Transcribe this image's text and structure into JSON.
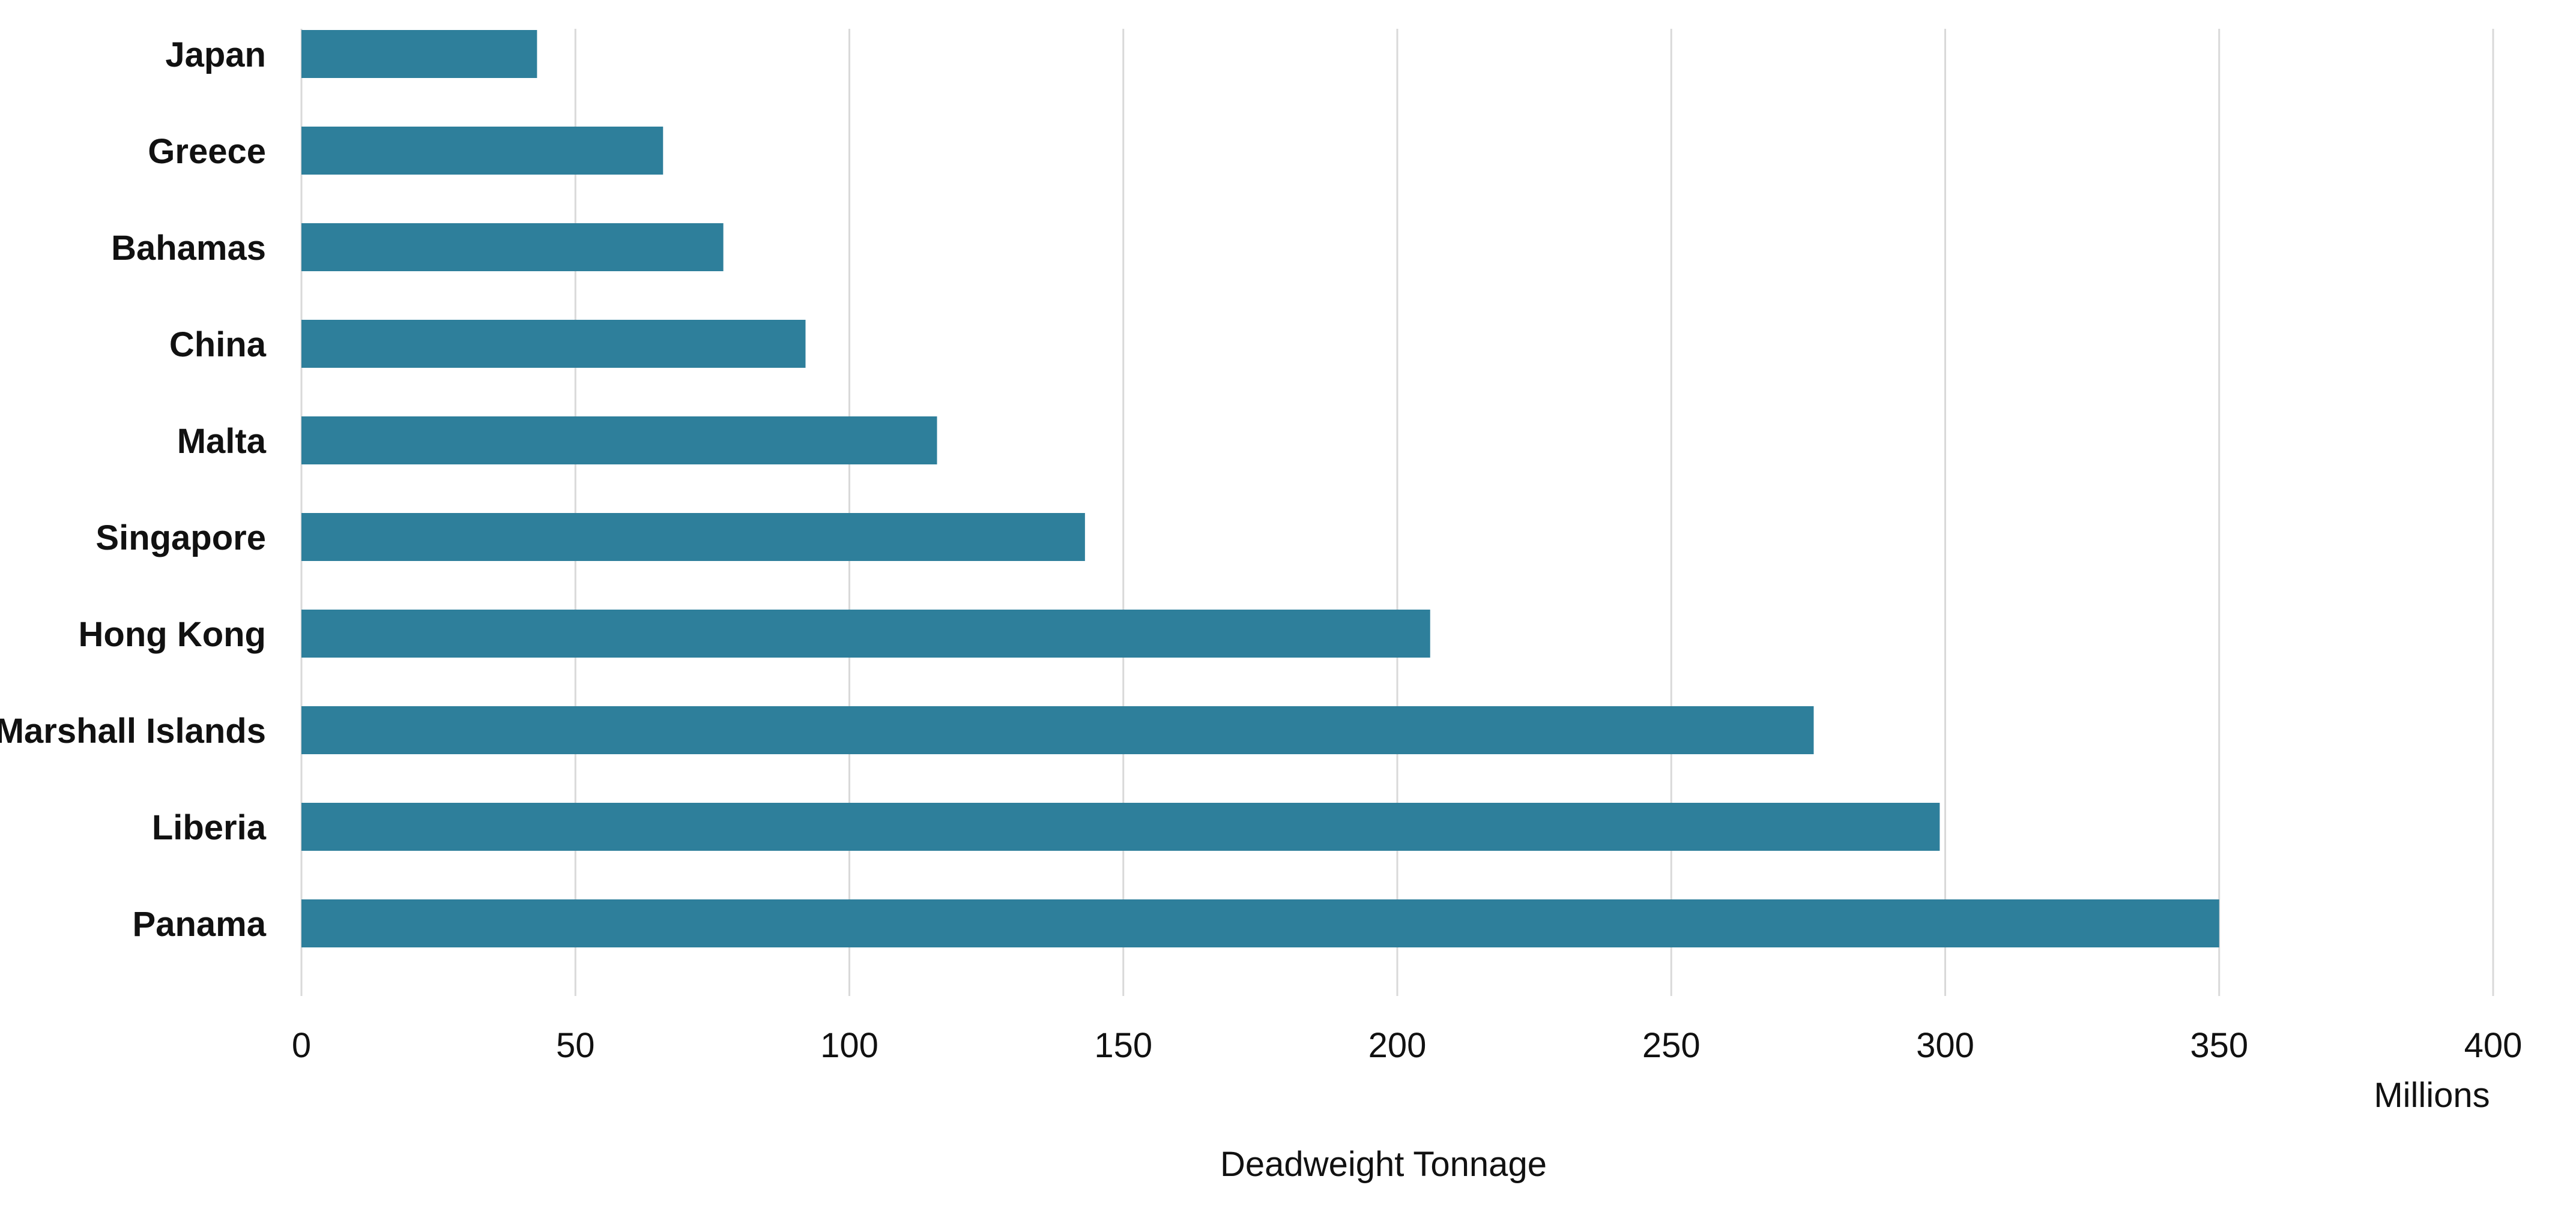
{
  "chart_data": {
    "type": "bar",
    "orientation": "horizontal",
    "categories": [
      "Japan",
      "Greece",
      "Bahamas",
      "China",
      "Malta",
      "Singapore",
      "Hong Kong",
      "Marshall Islands",
      "Liberia",
      "Panama"
    ],
    "values": [
      43,
      66,
      77,
      92,
      116,
      143,
      206,
      276,
      299,
      350
    ],
    "xlabel": "Deadweight Tonnage",
    "units": "Millions",
    "xlim": [
      0,
      400
    ],
    "xticks": [
      "0",
      "50",
      "100",
      "150",
      "200",
      "250",
      "300",
      "350",
      "400"
    ],
    "grid": true,
    "bar_color": "#2e7f9b",
    "grid_color": "#d9d9d9"
  }
}
